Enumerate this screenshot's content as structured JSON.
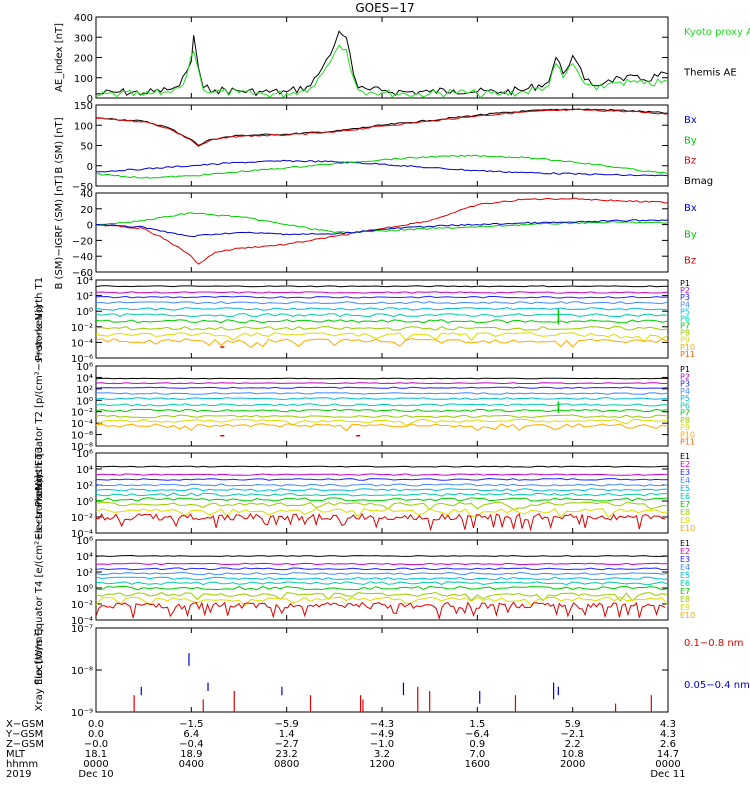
{
  "title": "GOES−17",
  "colors": {
    "black": "#000000",
    "red": "#dd0000",
    "green": "#00cc00",
    "blue": "#0000cc",
    "kyoto": "#22dd22",
    "series": [
      "#000000",
      "#cc00cc",
      "#2222ff",
      "#4488ff",
      "#00bbdd",
      "#00ccaa",
      "#00cc00",
      "#99cc00",
      "#dddd00",
      "#ffaa00",
      "#ff6600",
      "#dd0000"
    ]
  },
  "chart_data": [
    {
      "type": "line",
      "ylabel": "AE_index [nT]",
      "ylim": [
        0,
        400
      ],
      "yticks": [
        {
          "v": 0,
          "t": "0"
        },
        {
          "v": 100,
          "t": "100"
        },
        {
          "v": 200,
          "t": "200"
        },
        {
          "v": 300,
          "t": "300"
        },
        {
          "v": 400,
          "t": "400"
        }
      ],
      "legend": [
        {
          "name": "Kyoto proxy AE",
          "color": "kyoto"
        },
        {
          "name": "Themis AE",
          "color": "black"
        }
      ],
      "series": [
        {
          "name": "Themis AE",
          "color": "black",
          "x": [
            0,
            1,
            2,
            3,
            3.5,
            3.8,
            4,
            4.1,
            4.3,
            4.5,
            5,
            6,
            7,
            8,
            9,
            9.5,
            10,
            10.2,
            10.5,
            10.8,
            11,
            11.5,
            12,
            13,
            14,
            15,
            16,
            17,
            18,
            19,
            19.3,
            19.6,
            20,
            20.5,
            21,
            21.5,
            22,
            23,
            24
          ],
          "y": [
            20,
            30,
            25,
            40,
            60,
            130,
            180,
            310,
            150,
            50,
            40,
            35,
            30,
            30,
            60,
            150,
            260,
            330,
            300,
            120,
            50,
            40,
            35,
            30,
            30,
            40,
            30,
            30,
            40,
            80,
            200,
            120,
            210,
            90,
            60,
            90,
            100,
            90,
            120
          ]
        },
        {
          "name": "Kyoto proxy AE",
          "color": "kyoto",
          "x": [
            0,
            1,
            2,
            3,
            3.5,
            3.8,
            4,
            4.1,
            4.3,
            4.5,
            5,
            6,
            7,
            8,
            9,
            9.5,
            10,
            10.2,
            10.5,
            10.8,
            11,
            11.5,
            12,
            13,
            14,
            15,
            16,
            17,
            18,
            19,
            19.3,
            19.6,
            20,
            20.5,
            21,
            21.5,
            22,
            23,
            24
          ],
          "y": [
            10,
            20,
            15,
            30,
            50,
            110,
            210,
            230,
            140,
            40,
            30,
            25,
            20,
            20,
            50,
            120,
            220,
            260,
            240,
            100,
            40,
            30,
            25,
            20,
            20,
            30,
            20,
            20,
            30,
            60,
            170,
            100,
            170,
            70,
            40,
            70,
            80,
            70,
            80
          ]
        }
      ]
    },
    {
      "type": "line",
      "ylabel": "B (SM) [nT]",
      "ylim": [
        -50,
        150
      ],
      "yticks": [
        {
          "v": -50,
          "t": "−50"
        },
        {
          "v": 0,
          "t": "0"
        },
        {
          "v": 50,
          "t": "50"
        },
        {
          "v": 100,
          "t": "100"
        },
        {
          "v": 150,
          "t": "150"
        }
      ],
      "legend": [
        {
          "name": "Bx",
          "color": "blue"
        },
        {
          "name": "By",
          "color": "green"
        },
        {
          "name": "Bz",
          "color": "red"
        },
        {
          "name": "Bmag",
          "color": "black"
        }
      ],
      "series": [
        {
          "name": "Bmag",
          "color": "black",
          "x": [
            0,
            2,
            3,
            4,
            4.3,
            4.8,
            6,
            8,
            10,
            12,
            14,
            16,
            18,
            20,
            22,
            24
          ],
          "y": [
            118,
            110,
            95,
            65,
            50,
            65,
            75,
            78,
            85,
            100,
            112,
            125,
            135,
            140,
            137,
            130
          ]
        },
        {
          "name": "Bz",
          "color": "red",
          "x": [
            0,
            2,
            3,
            4,
            4.3,
            4.8,
            6,
            8,
            10,
            12,
            14,
            16,
            18,
            20,
            22,
            24
          ],
          "y": [
            117,
            109,
            93,
            63,
            48,
            63,
            73,
            76,
            83,
            98,
            110,
            123,
            133,
            138,
            135,
            128
          ]
        },
        {
          "name": "Bx",
          "color": "blue",
          "x": [
            0,
            2,
            4,
            6,
            8,
            10,
            12,
            14,
            16,
            18,
            20,
            22,
            24
          ],
          "y": [
            -15,
            -8,
            0,
            8,
            12,
            10,
            4,
            -5,
            -12,
            -17,
            -20,
            -23,
            -25
          ]
        },
        {
          "name": "By",
          "color": "green",
          "x": [
            0,
            2,
            4,
            6,
            8,
            10,
            12,
            14,
            16,
            18,
            20,
            22,
            24
          ],
          "y": [
            -20,
            -30,
            -25,
            -15,
            -5,
            5,
            15,
            22,
            25,
            20,
            10,
            -5,
            -20
          ]
        }
      ]
    },
    {
      "type": "line",
      "ylabel": "B (SM)−IGRF (SM) [nT]",
      "ylim": [
        -60,
        40
      ],
      "yticks": [
        {
          "v": -60,
          "t": "−60"
        },
        {
          "v": -40,
          "t": "−40"
        },
        {
          "v": -20,
          "t": "−20"
        },
        {
          "v": 0,
          "t": "0"
        },
        {
          "v": 20,
          "t": "20"
        },
        {
          "v": 40,
          "t": "40"
        }
      ],
      "legend": [
        {
          "name": "Bx",
          "color": "blue"
        },
        {
          "name": "By",
          "color": "green"
        },
        {
          "name": "Bz",
          "color": "red"
        }
      ],
      "series": [
        {
          "name": "Bz",
          "color": "red",
          "x": [
            0,
            2,
            3,
            4,
            4.3,
            5,
            6,
            8,
            10,
            12,
            14,
            15,
            16,
            18,
            20,
            22,
            24
          ],
          "y": [
            0,
            -5,
            -20,
            -40,
            -50,
            -35,
            -30,
            -25,
            -15,
            -5,
            5,
            15,
            25,
            32,
            33,
            30,
            28
          ]
        },
        {
          "name": "By",
          "color": "green",
          "x": [
            0,
            2,
            3,
            4,
            5,
            6,
            8,
            10,
            12,
            14,
            16,
            18,
            20,
            22,
            24
          ],
          "y": [
            0,
            5,
            10,
            15,
            12,
            10,
            0,
            -10,
            -8,
            -5,
            -3,
            0,
            2,
            3,
            2
          ]
        },
        {
          "name": "Bx",
          "color": "blue",
          "x": [
            0,
            2,
            3,
            4,
            5,
            6,
            8,
            10,
            12,
            14,
            16,
            18,
            20,
            22,
            24
          ],
          "y": [
            0,
            -3,
            -10,
            -15,
            -12,
            -10,
            -12,
            -12,
            -6,
            -2,
            0,
            2,
            3,
            5,
            6
          ]
        }
      ]
    },
    {
      "type": "line",
      "log": true,
      "ylabel": "Protons North T1",
      "ylim": [
        -6,
        4
      ],
      "yticks": [
        {
          "v": -6,
          "t": "10⁻⁶"
        },
        {
          "v": -4,
          "t": "10⁻⁴"
        },
        {
          "v": -2,
          "t": "10⁻²"
        },
        {
          "v": 0,
          "t": "10⁰"
        },
        {
          "v": 2,
          "t": "10²"
        },
        {
          "v": 4,
          "t": "10⁴"
        }
      ],
      "legend": [
        "P1",
        "P2",
        "P3",
        "P4",
        "P5",
        "P6",
        "P7",
        "P8",
        "P9",
        "P10",
        "P11"
      ],
      "levels": [
        3.2,
        2.4,
        1.8,
        1.1,
        0.3,
        -0.5,
        -1.3,
        -2.2,
        -3.0,
        -3.8
      ],
      "spikes": [
        {
          "x": 19.4,
          "y": -0.5
        }
      ],
      "marks": [
        {
          "x": 5.3,
          "y": -4.6
        }
      ]
    },
    {
      "type": "line",
      "log": true,
      "ylabel": "Protons Equator T2 [p/(cm²−s−sr−keV)]",
      "ylim": [
        -8,
        6
      ],
      "yticks": [
        {
          "v": -8,
          "t": "10⁻⁸"
        },
        {
          "v": -6,
          "t": "10⁻⁶"
        },
        {
          "v": -4,
          "t": "10⁻⁴"
        },
        {
          "v": -2,
          "t": "10⁻²"
        },
        {
          "v": 0,
          "t": "10⁰"
        },
        {
          "v": 2,
          "t": "10²"
        },
        {
          "v": 4,
          "t": "10⁴"
        },
        {
          "v": 6,
          "t": "10⁶"
        }
      ],
      "legend": [
        "P1",
        "P2",
        "P3",
        "P4",
        "P5",
        "P6",
        "P7",
        "P8",
        "P9",
        "P10",
        "P11"
      ],
      "levels": [
        3.8,
        3.0,
        2.2,
        1.2,
        0.3,
        -0.8,
        -1.8,
        -2.8,
        -3.6,
        -4.4
      ],
      "spikes": [
        {
          "x": 19.4,
          "y": -1.0
        }
      ],
      "marks": [
        {
          "x": 5.3,
          "y": -6.2
        },
        {
          "x": 11.0,
          "y": -6.2
        }
      ]
    },
    {
      "type": "line",
      "log": true,
      "ylabel": "Electrons North T3",
      "ylim": [
        -4,
        6
      ],
      "yticks": [
        {
          "v": -4,
          "t": "10⁻⁴"
        },
        {
          "v": -2,
          "t": "10⁻²"
        },
        {
          "v": 0,
          "t": "10⁰"
        },
        {
          "v": 2,
          "t": "10²"
        },
        {
          "v": 4,
          "t": "10⁴"
        },
        {
          "v": 6,
          "t": "10⁶"
        }
      ],
      "legend": [
        "E1",
        "E2",
        "E3",
        "E4",
        "E5",
        "E6",
        "E7",
        "E8",
        "E9",
        "E10"
      ],
      "levels": [
        4.3,
        3.3,
        2.7,
        2.0,
        1.4,
        0.8,
        0.2,
        -0.4,
        -1.2
      ],
      "noisy": -2.0
    },
    {
      "type": "line",
      "log": true,
      "ylabel": "Electrons Equator T4 [e/(cm²−s−sr−keV)]",
      "ylim": [
        -4,
        6
      ],
      "yticks": [
        {
          "v": -4,
          "t": "10⁻⁴"
        },
        {
          "v": -2,
          "t": "10⁻²"
        },
        {
          "v": 0,
          "t": "10⁰"
        },
        {
          "v": 2,
          "t": "10²"
        },
        {
          "v": 4,
          "t": "10⁴"
        },
        {
          "v": 6,
          "t": "10⁶"
        }
      ],
      "legend": [
        "E1",
        "E2",
        "E3",
        "E4",
        "E5",
        "E6",
        "E7",
        "E8",
        "E9",
        "E10"
      ],
      "levels": [
        4.0,
        3.0,
        2.4,
        1.8,
        1.2,
        0.6,
        0.0,
        -0.8,
        -1.4
      ],
      "noisy": -2.2
    },
    {
      "type": "scatter",
      "log": true,
      "ylabel": "Xray flux [W/m²]",
      "ylim": [
        -9,
        -7
      ],
      "yticks": [
        {
          "v": -9,
          "t": "10⁻⁹"
        },
        {
          "v": -8,
          "t": "10⁻⁸"
        },
        {
          "v": -7,
          "t": "10⁻⁷"
        }
      ],
      "legend": [
        {
          "name": "0.1−0.8 nm",
          "color": "red"
        },
        {
          "name": "0.05−0.4 nm",
          "color": "blue"
        }
      ],
      "blue": [
        {
          "x": 3.9,
          "y1": -7.9,
          "y2": -7.6
        },
        {
          "x": 1.9,
          "y1": -8.6,
          "y2": -8.4
        },
        {
          "x": 4.7,
          "y1": -8.5,
          "y2": -8.3
        },
        {
          "x": 7.8,
          "y1": -8.6,
          "y2": -8.4
        },
        {
          "x": 12.9,
          "y1": -8.6,
          "y2": -8.3
        },
        {
          "x": 16.1,
          "y1": -8.8,
          "y2": -8.5
        },
        {
          "x": 19.2,
          "y1": -8.7,
          "y2": -8.3
        },
        {
          "x": 19.4,
          "y1": -8.6,
          "y2": -8.4
        }
      ],
      "red": [
        {
          "x": 1.6,
          "y1": -9.0,
          "y2": -8.6
        },
        {
          "x": 4.5,
          "y1": -9.0,
          "y2": -8.7
        },
        {
          "x": 5.8,
          "y1": -9.0,
          "y2": -8.5
        },
        {
          "x": 9.0,
          "y1": -9.0,
          "y2": -8.6
        },
        {
          "x": 11.1,
          "y1": -9.0,
          "y2": -8.6
        },
        {
          "x": 11.2,
          "y1": -9.0,
          "y2": -8.7
        },
        {
          "x": 13.5,
          "y1": -9.0,
          "y2": -8.4
        },
        {
          "x": 14.0,
          "y1": -9.0,
          "y2": -8.5
        },
        {
          "x": 17.6,
          "y1": -9.0,
          "y2": -8.6
        },
        {
          "x": 21.8,
          "y1": -9.0,
          "y2": -8.8
        },
        {
          "x": 23.3,
          "y1": -9.0,
          "y2": -8.6
        }
      ]
    }
  ],
  "xaxis": {
    "rows": [
      {
        "label": "X−GSM",
        "values": [
          "0.0",
          "−1.5",
          "−5.9",
          "−4.3",
          "1.5",
          "5.9",
          "4.3"
        ]
      },
      {
        "label": "Y−GSM",
        "values": [
          "0.0",
          "6.4",
          "1.4",
          "−4.9",
          "−6.4",
          "−2.1",
          "4.3"
        ]
      },
      {
        "label": "Z−GSM",
        "values": [
          "−0.0",
          "−0.4",
          "−2.7",
          "−1.0",
          "0.9",
          "2.2",
          "2.6"
        ]
      },
      {
        "label": "MLT",
        "values": [
          "18.1",
          "18.9",
          "23.2",
          "3.2",
          "7.0",
          "10.8",
          "14.7"
        ]
      },
      {
        "label": "hhmm",
        "values": [
          "0000",
          "0400",
          "0800",
          "1200",
          "1600",
          "2000",
          "0000"
        ]
      }
    ],
    "year": "2019",
    "start_date": "Dec 10",
    "end_date": "Dec 11",
    "tick_hours": [
      0,
      4,
      8,
      12,
      16,
      20,
      24
    ]
  }
}
